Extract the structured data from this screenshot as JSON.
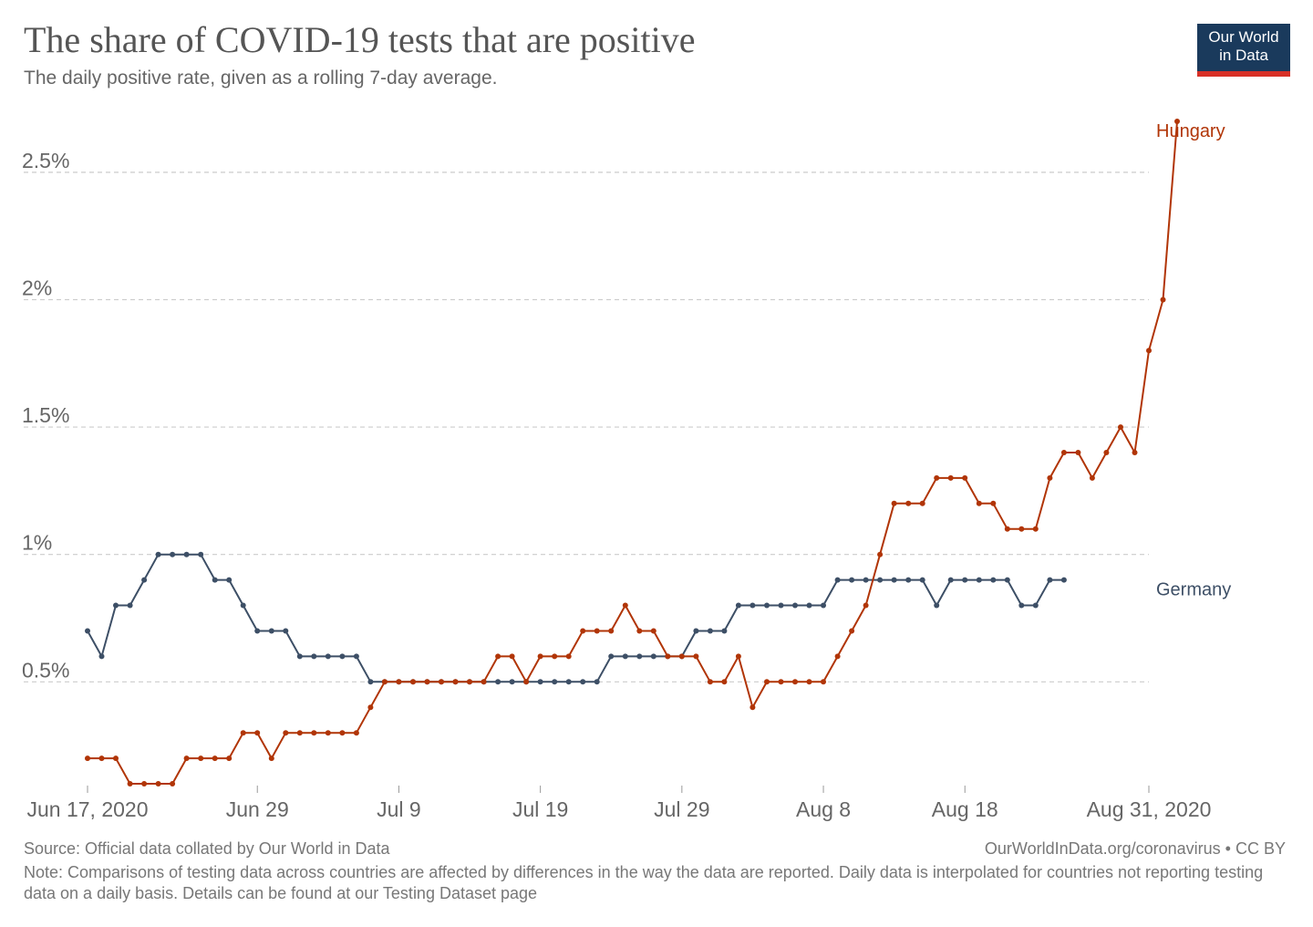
{
  "header": {
    "title": "The share of COVID-19 tests that are positive",
    "subtitle": "The daily positive rate, given as a rolling 7-day average."
  },
  "logo": {
    "line1": "Our World",
    "line2": "in Data",
    "bg_color": "#1a3a5c",
    "accent_color": "#d73027"
  },
  "footer": {
    "source": "Source: Official data collated by Our World in Data",
    "license": "OurWorldInData.org/coronavirus • CC BY",
    "note": "Note: Comparisons of testing data across countries are affected by differences in the way the data are reported. Daily data is interpolated for countries not reporting testing data on a daily basis. Details can be found at our Testing Dataset page"
  },
  "chart_data": {
    "type": "line",
    "x_start": "2020-06-17",
    "x_end": "2020-08-31",
    "x_ticks": [
      {
        "date": "2020-06-17",
        "label": "Jun 17, 2020"
      },
      {
        "date": "2020-06-29",
        "label": "Jun 29"
      },
      {
        "date": "2020-07-09",
        "label": "Jul 9"
      },
      {
        "date": "2020-07-19",
        "label": "Jul 19"
      },
      {
        "date": "2020-07-29",
        "label": "Jul 29"
      },
      {
        "date": "2020-08-08",
        "label": "Aug 8"
      },
      {
        "date": "2020-08-18",
        "label": "Aug 18"
      },
      {
        "date": "2020-08-31",
        "label": "Aug 31, 2020"
      }
    ],
    "y_ticks": [
      {
        "value": 0.5,
        "label": "0.5%"
      },
      {
        "value": 1.0,
        "label": "1%"
      },
      {
        "value": 1.5,
        "label": "1.5%"
      },
      {
        "value": 2.0,
        "label": "2%"
      },
      {
        "value": 2.5,
        "label": "2.5%"
      }
    ],
    "ylim": [
      0.1,
      2.7
    ],
    "grid": "horizontal-dashed",
    "legend": "end-of-line labels",
    "series": [
      {
        "name": "Germany",
        "color": "#3d4f66",
        "start_date": "2020-06-17",
        "end_date": "2020-08-24",
        "values": [
          0.7,
          0.6,
          0.8,
          0.8,
          0.9,
          1.0,
          1.0,
          1.0,
          1.0,
          0.9,
          0.9,
          0.8,
          0.7,
          0.7,
          0.7,
          0.6,
          0.6,
          0.6,
          0.6,
          0.6,
          0.5,
          0.5,
          0.5,
          0.5,
          0.5,
          0.5,
          0.5,
          0.5,
          0.5,
          0.5,
          0.5,
          0.5,
          0.5,
          0.5,
          0.5,
          0.5,
          0.5,
          0.6,
          0.6,
          0.6,
          0.6,
          0.6,
          0.6,
          0.7,
          0.7,
          0.7,
          0.8,
          0.8,
          0.8,
          0.8,
          0.8,
          0.8,
          0.8,
          0.9,
          0.9,
          0.9,
          0.9,
          0.9,
          0.9,
          0.9,
          0.8,
          0.9,
          0.9,
          0.9,
          0.9,
          0.9,
          0.8,
          0.8,
          0.9,
          0.9
        ]
      },
      {
        "name": "Hungary",
        "color": "#b13507",
        "start_date": "2020-06-17",
        "end_date": "2020-08-31",
        "values": [
          0.2,
          0.2,
          0.2,
          0.1,
          0.1,
          0.1,
          0.1,
          0.2,
          0.2,
          0.2,
          0.2,
          0.3,
          0.3,
          0.2,
          0.3,
          0.3,
          0.3,
          0.3,
          0.3,
          0.3,
          0.4,
          0.5,
          0.5,
          0.5,
          0.5,
          0.5,
          0.5,
          0.5,
          0.5,
          0.6,
          0.6,
          0.5,
          0.6,
          0.6,
          0.6,
          0.7,
          0.7,
          0.7,
          0.8,
          0.7,
          0.7,
          0.6,
          0.6,
          0.6,
          0.5,
          0.5,
          0.6,
          0.4,
          0.5,
          0.5,
          0.5,
          0.5,
          0.5,
          0.6,
          0.7,
          0.8,
          1.0,
          1.2,
          1.2,
          1.2,
          1.3,
          1.3,
          1.3,
          1.2,
          1.2,
          1.1,
          1.1,
          1.1,
          1.3,
          1.4,
          1.4,
          1.3,
          1.4,
          1.5,
          1.4,
          1.8,
          2.0,
          2.7
        ]
      }
    ]
  }
}
